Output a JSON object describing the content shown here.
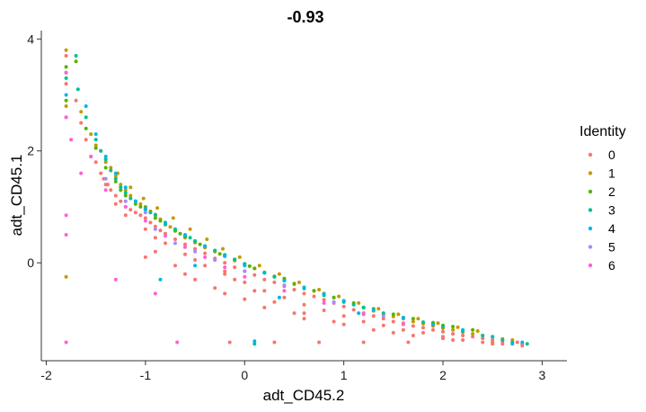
{
  "colors": {
    "identity_0": "#F8766D",
    "identity_1": "#C49A00",
    "identity_2": "#53B400",
    "identity_3": "#00C094",
    "identity_4": "#00B6EB",
    "identity_5": "#A58AFF",
    "identity_6": "#FB61D7",
    "axis": "#333333"
  },
  "chart_data": {
    "type": "scatter",
    "title": "-0.93",
    "xlabel": "adt_CD45.2",
    "ylabel": "adt_CD45.1",
    "xlim": [
      -2.05,
      3.25
    ],
    "ylim": [
      -1.75,
      4.15
    ],
    "x_ticks": [
      -2,
      -1,
      0,
      1,
      2,
      3
    ],
    "x_tick_labels": [
      "-2",
      "-1",
      "0",
      "1",
      "2",
      "3"
    ],
    "y_ticks": [
      0,
      2,
      4
    ],
    "y_tick_labels": [
      "0",
      "2",
      "4"
    ],
    "grid": false,
    "legend": {
      "title": "Identity",
      "placement": "right",
      "entries": [
        "0",
        "1",
        "2",
        "3",
        "4",
        "5",
        "6"
      ]
    },
    "series": [
      {
        "name": "0",
        "x": [
          -1.8,
          -1.8,
          -1.8,
          -1.7,
          -1.65,
          -1.6,
          -1.55,
          -1.5,
          -1.45,
          -1.42,
          -1.38,
          -1.35,
          -1.3,
          -1.25,
          -1.2,
          -1.15,
          -1.1,
          -1.05,
          -1.0,
          -0.95,
          -0.9,
          -0.85,
          -0.8,
          -0.7,
          -0.6,
          -0.5,
          -0.4,
          -0.3,
          -0.2,
          -0.1,
          0.0,
          0.1,
          0.2,
          0.3,
          0.4,
          0.5,
          0.6,
          0.7,
          0.8,
          0.9,
          1.0,
          1.1,
          1.2,
          1.3,
          1.4,
          1.5,
          1.6,
          1.7,
          1.8,
          1.9,
          2.0,
          2.1,
          2.2,
          2.3,
          2.4,
          2.5,
          2.6,
          2.7,
          2.8,
          -1.4,
          -1.3,
          -1.2,
          -1.0,
          -0.9,
          -0.8,
          -0.6,
          -0.5,
          -0.4,
          -0.2,
          0.0,
          0.2,
          0.4,
          0.6,
          0.8,
          1.0,
          1.2,
          1.4,
          1.6,
          1.8,
          2.0,
          2.2,
          2.4,
          2.6,
          2.8,
          -0.3,
          -0.2,
          -0.1,
          0.1,
          0.3,
          0.6,
          0.9,
          1.3,
          1.7,
          2.1,
          2.5,
          -1.0,
          -0.6,
          -0.3,
          0.0,
          0.5,
          1.0,
          1.5,
          2.0,
          -0.15,
          0.3,
          0.75,
          1.2,
          1.65,
          2.5,
          2.75,
          -0.9,
          -0.7,
          -0.5,
          -0.2,
          0.2,
          0.6
        ],
        "y": [
          3.7,
          3.2,
          2.6,
          2.9,
          2.5,
          2.2,
          1.9,
          1.8,
          1.6,
          1.5,
          1.4,
          1.3,
          1.2,
          1.1,
          1.0,
          0.95,
          0.9,
          0.85,
          0.8,
          0.72,
          0.65,
          0.58,
          0.52,
          0.42,
          0.33,
          0.25,
          0.17,
          0.08,
          0.0,
          -0.08,
          -0.15,
          -0.22,
          -0.3,
          -0.35,
          -0.42,
          -0.48,
          -0.55,
          -0.6,
          -0.66,
          -0.72,
          -0.78,
          -0.84,
          -0.9,
          -0.95,
          -1.0,
          -1.05,
          -1.1,
          -1.13,
          -1.16,
          -1.2,
          -1.23,
          -1.27,
          -1.3,
          -1.32,
          -1.35,
          -1.38,
          -1.4,
          -1.42,
          -1.45,
          1.4,
          1.05,
          0.85,
          0.6,
          0.45,
          0.35,
          0.15,
          0.05,
          -0.05,
          -0.2,
          -0.35,
          -0.5,
          -0.62,
          -0.75,
          -0.85,
          -0.95,
          -1.05,
          -1.12,
          -1.2,
          -1.25,
          -1.32,
          -1.38,
          -1.42,
          -1.45,
          -1.48,
          0.05,
          -0.15,
          -0.3,
          -0.5,
          -0.7,
          -0.9,
          -1.05,
          -1.2,
          -1.3,
          -1.38,
          -1.45,
          0.1,
          -0.2,
          -0.45,
          -0.65,
          -0.9,
          -1.1,
          -1.25,
          -1.35,
          -1.42,
          -1.42,
          -1.42,
          -1.42,
          -1.42,
          -1.42,
          -1.42,
          0.2,
          -0.05,
          -0.3,
          -0.55,
          -0.8,
          -1.0
        ]
      },
      {
        "name": "1",
        "x": [
          -1.8,
          -1.8,
          -1.8,
          -1.65,
          -1.55,
          -1.5,
          -1.45,
          -1.4,
          -1.35,
          -1.3,
          -1.25,
          -1.2,
          -1.15,
          -1.1,
          -1.05,
          -1.0,
          -0.95,
          -0.9,
          -0.85,
          -0.8,
          -0.75,
          -0.7,
          -0.6,
          -0.5,
          -0.4,
          -0.3,
          -0.2,
          -0.1,
          0.0,
          0.1,
          0.2,
          0.3,
          0.4,
          0.5,
          0.6,
          0.7,
          0.8,
          0.9,
          1.0,
          1.1,
          1.2,
          1.3,
          1.4,
          1.5,
          1.6,
          1.7,
          1.8,
          1.9,
          2.0,
          2.1,
          2.2,
          2.3,
          2.4,
          2.5,
          2.6,
          2.7,
          -1.28,
          -1.15,
          -1.02,
          -0.88,
          -0.72,
          -0.55,
          -0.38,
          -0.22,
          -0.05,
          0.15,
          0.35,
          0.55,
          0.75,
          0.95,
          1.15,
          1.35,
          1.55,
          1.75,
          1.95,
          2.15,
          2.35,
          -1.8
        ],
        "y": [
          3.8,
          3.4,
          2.8,
          2.7,
          2.3,
          2.1,
          2.0,
          1.8,
          1.7,
          1.55,
          1.4,
          1.3,
          1.2,
          1.1,
          1.05,
          1.0,
          0.92,
          0.85,
          0.78,
          0.7,
          0.64,
          0.58,
          0.45,
          0.36,
          0.27,
          0.2,
          0.12,
          0.04,
          -0.02,
          -0.1,
          -0.17,
          -0.24,
          -0.3,
          -0.37,
          -0.44,
          -0.5,
          -0.56,
          -0.62,
          -0.68,
          -0.74,
          -0.8,
          -0.86,
          -0.91,
          -0.96,
          -1.0,
          -1.05,
          -1.09,
          -1.13,
          -1.17,
          -1.2,
          -1.24,
          -1.27,
          -1.3,
          -1.33,
          -1.36,
          -1.38,
          1.6,
          1.35,
          1.15,
          0.98,
          0.8,
          0.6,
          0.42,
          0.25,
          0.1,
          -0.05,
          -0.2,
          -0.35,
          -0.48,
          -0.6,
          -0.72,
          -0.82,
          -0.92,
          -1.0,
          -1.08,
          -1.15,
          -1.22,
          -0.25
        ]
      },
      {
        "name": "2",
        "x": [
          -1.8,
          -1.8,
          -1.7,
          -1.6,
          -1.5,
          -1.4,
          -1.3,
          -1.2,
          -1.1,
          -1.0,
          -0.9,
          -0.8,
          -0.7,
          -0.6,
          -0.5,
          -0.4,
          -0.3,
          -0.2,
          -0.1,
          0.0,
          0.1,
          0.2,
          0.3,
          0.5,
          0.7,
          0.9,
          1.1,
          1.3,
          1.5,
          1.7,
          1.9,
          2.1,
          2.3,
          -1.25,
          -1.05,
          -0.85,
          -0.65,
          -0.45,
          -0.25,
          0.05,
          0.4,
          0.8,
          1.2,
          1.6,
          2.0
        ],
        "y": [
          3.5,
          2.9,
          3.6,
          2.4,
          2.05,
          1.7,
          1.45,
          1.2,
          1.05,
          0.95,
          0.8,
          0.68,
          0.57,
          0.47,
          0.38,
          0.3,
          0.22,
          0.14,
          0.06,
          -0.02,
          -0.1,
          -0.18,
          -0.25,
          -0.38,
          -0.5,
          -0.62,
          -0.72,
          -0.82,
          -0.92,
          -1.0,
          -1.07,
          -1.14,
          -1.2,
          1.3,
          1.0,
          0.75,
          0.52,
          0.33,
          0.16,
          -0.06,
          -0.28,
          -0.55,
          -0.8,
          -0.98,
          -1.12
        ]
      },
      {
        "name": "3",
        "x": [
          -1.8,
          -1.7,
          -1.68,
          -1.6,
          -1.5,
          -1.45,
          -1.4,
          -1.35,
          -1.3,
          -1.25,
          -1.2,
          -1.1,
          -1.0,
          -0.9,
          -0.8,
          -0.7,
          -0.6,
          -0.5,
          -0.4,
          -0.3,
          -0.2,
          -0.1,
          0.0,
          0.2,
          0.4,
          0.6,
          0.8,
          1.0,
          1.2,
          1.4,
          1.6,
          1.8,
          2.0,
          2.2,
          2.4,
          2.6,
          2.85,
          -1.15,
          -0.95,
          -0.55,
          0.3,
          1.1,
          1.9,
          2.7,
          0.1
        ],
        "y": [
          3.3,
          3.7,
          3.1,
          2.6,
          2.2,
          2.0,
          1.85,
          1.65,
          1.5,
          1.35,
          1.25,
          1.1,
          0.98,
          0.86,
          0.72,
          0.6,
          0.48,
          0.39,
          0.3,
          0.22,
          0.14,
          0.06,
          -0.02,
          -0.18,
          -0.32,
          -0.46,
          -0.58,
          -0.7,
          -0.8,
          -0.9,
          -0.98,
          -1.06,
          -1.14,
          -1.22,
          -1.3,
          -1.38,
          -1.45,
          1.15,
          0.9,
          0.45,
          -0.25,
          -0.75,
          -1.1,
          -1.42,
          -1.45
        ]
      },
      {
        "name": "4",
        "x": [
          -1.8,
          -1.6,
          -1.5,
          -1.4,
          -1.3,
          -1.2,
          -1.1,
          -1.0,
          -0.8,
          -0.6,
          -0.4,
          -0.2,
          0.0,
          0.2,
          0.4,
          0.6,
          0.8,
          1.0,
          1.3,
          1.6,
          1.9,
          2.2,
          2.5,
          2.8,
          -0.85,
          -0.5,
          0.35,
          1.15,
          2.7,
          0.1
        ],
        "y": [
          3.0,
          2.8,
          2.3,
          1.9,
          1.6,
          1.35,
          1.1,
          0.95,
          0.7,
          0.5,
          0.3,
          0.12,
          -0.05,
          -0.18,
          -0.32,
          -0.44,
          -0.56,
          -0.68,
          -0.84,
          -0.98,
          -1.1,
          -1.2,
          -1.32,
          -1.42,
          -0.3,
          -0.05,
          -0.62,
          -0.9,
          -1.45,
          -1.4
        ]
      },
      {
        "name": "5",
        "x": [
          -1.4,
          -1.2,
          -1.0,
          -0.9,
          -0.7,
          -0.5,
          -0.3,
          0.0,
          0.4,
          0.9,
          1.4
        ],
        "y": [
          1.5,
          1.1,
          0.9,
          0.6,
          0.35,
          0.2,
          0.05,
          -0.15,
          -0.4,
          -0.7,
          -0.95
        ]
      },
      {
        "name": "6",
        "x": [
          -1.8,
          -1.8,
          -1.8,
          -1.75,
          -1.65,
          -1.55,
          -1.4,
          -1.2,
          -1.0,
          -0.8,
          -0.6,
          -0.4,
          -0.2,
          0.0,
          0.4,
          0.8,
          1.2,
          1.6,
          -1.8,
          -1.8,
          -0.68,
          -0.9,
          -1.3
        ],
        "y": [
          3.4,
          2.6,
          0.85,
          2.2,
          1.6,
          1.9,
          1.3,
          1.0,
          0.75,
          0.48,
          0.28,
          0.1,
          -0.08,
          -0.25,
          -0.5,
          -0.72,
          -0.92,
          -1.08,
          0.5,
          -1.42,
          -1.42,
          -0.55,
          -0.3
        ]
      }
    ]
  }
}
